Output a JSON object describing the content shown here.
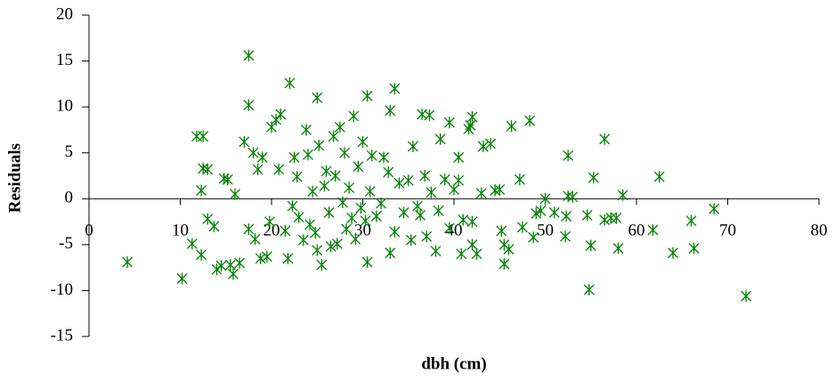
{
  "chart_data": {
    "type": "scatter",
    "x_label": "dbh (cm)",
    "y_label": "Residuals",
    "color": "#008000",
    "xlim": [
      0,
      80
    ],
    "xticks": [
      0,
      10,
      20,
      30,
      40,
      50,
      60,
      70,
      80
    ],
    "ylim": [
      -15,
      20
    ],
    "yticks": [
      -15,
      -10,
      -5,
      0,
      5,
      10,
      15,
      20
    ],
    "x": [
      4.2,
      10.2,
      17.5,
      17.5,
      22,
      25,
      30.5,
      33.5,
      33,
      11.8,
      12.5,
      54.8,
      72,
      56.5,
      62.5,
      68.5,
      66,
      66.3,
      64,
      61.8,
      58.5,
      58,
      57.8,
      57.2,
      55,
      55.3,
      54.6,
      56.5,
      52.5,
      52.5,
      52.3,
      52.2,
      49,
      48.3,
      47.2,
      46.3,
      45.5,
      45.5,
      45.2,
      45,
      44,
      43.2,
      42,
      41.8,
      40.5,
      40,
      39.5,
      41.6,
      42,
      42.5,
      42,
      37.3,
      36.5,
      38.5,
      38,
      37,
      11.3,
      12.3,
      12.5,
      13,
      12.3,
      13,
      13.7,
      14,
      14.5,
      15.5,
      15.8,
      16.5,
      14.8,
      15.2,
      16,
      17,
      17.5,
      18,
      18.2,
      18.5,
      18.8,
      19,
      19.5,
      19.8,
      20,
      20.5,
      20.8,
      21,
      21.5,
      21.8,
      22.3,
      22.5,
      22.8,
      23,
      23.5,
      23.8,
      24,
      24.2,
      24.5,
      24.8,
      25,
      25.2,
      25.5,
      25.8,
      26,
      26.3,
      26.5,
      26.8,
      27,
      27.2,
      27.5,
      27.8,
      28,
      28.2,
      28.5,
      28.8,
      29,
      29.2,
      29.5,
      29.8,
      30,
      30.3,
      30.5,
      30.8,
      31,
      31.5,
      32,
      32.3,
      32.8,
      33,
      33.5,
      34,
      34.5,
      35,
      35.3,
      35.5,
      36,
      36.3,
      36.8,
      37.5,
      38.3,
      39,
      39.5,
      40.5,
      40.8,
      41,
      43,
      44.5,
      46,
      47.5,
      48.7,
      50,
      51,
      53,
      49.5
    ],
    "values": [
      -6.9,
      -8.7,
      15.6,
      10.2,
      12.6,
      11,
      11.2,
      12,
      9.6,
      6.8,
      6.8,
      -9.9,
      -10.6,
      6.5,
      2.4,
      -1.1,
      -2.4,
      -5.4,
      -5.9,
      -3.4,
      0.4,
      -5.4,
      -2.1,
      -2.1,
      -5.1,
      2.3,
      -1.8,
      -2.3,
      4.7,
      0.3,
      -1.9,
      -4.1,
      -1.6,
      8.5,
      2.1,
      7.9,
      -7.1,
      -5,
      -3.5,
      1,
      6,
      5.7,
      8.9,
      8,
      4.5,
      1,
      8.3,
      7.6,
      -2.5,
      -6,
      -5,
      9.1,
      9.2,
      6.5,
      -5.7,
      -4.1,
      -4.9,
      -6.1,
      3.3,
      3.2,
      0.9,
      -2.2,
      -3,
      -7.7,
      -7.3,
      -7.2,
      -8.2,
      -7,
      2.2,
      2.1,
      0.5,
      6.2,
      -3.3,
      5,
      -4.4,
      3.2,
      -6.5,
      4.5,
      -6.3,
      -2.5,
      7.8,
      8.6,
      3.2,
      9.2,
      -3.5,
      -6.5,
      -0.8,
      4.5,
      2.4,
      -2,
      -4.5,
      7.5,
      4.8,
      -2.8,
      0.8,
      -3.7,
      -5.6,
      5.8,
      -7.2,
      1.4,
      3,
      -1.5,
      -5.2,
      6.8,
      2.5,
      -4.9,
      7.8,
      -0.4,
      5,
      -3.3,
      1.2,
      -2.1,
      9,
      -4.4,
      3.5,
      -1,
      6.2,
      -2.4,
      -6.9,
      0.8,
      4.7,
      -1.9,
      -0.5,
      4.5,
      2.9,
      -5.9,
      -3.6,
      1.7,
      -1.5,
      2,
      -4.5,
      5.7,
      -0.8,
      -1.8,
      2.5,
      0.7,
      -1.3,
      2.1,
      -3.2,
      2,
      -6,
      -2.3,
      0.6,
      0.9,
      -5.5,
      -3.1,
      -4.2,
      0,
      -1.5,
      0.2,
      -1.3
    ]
  }
}
